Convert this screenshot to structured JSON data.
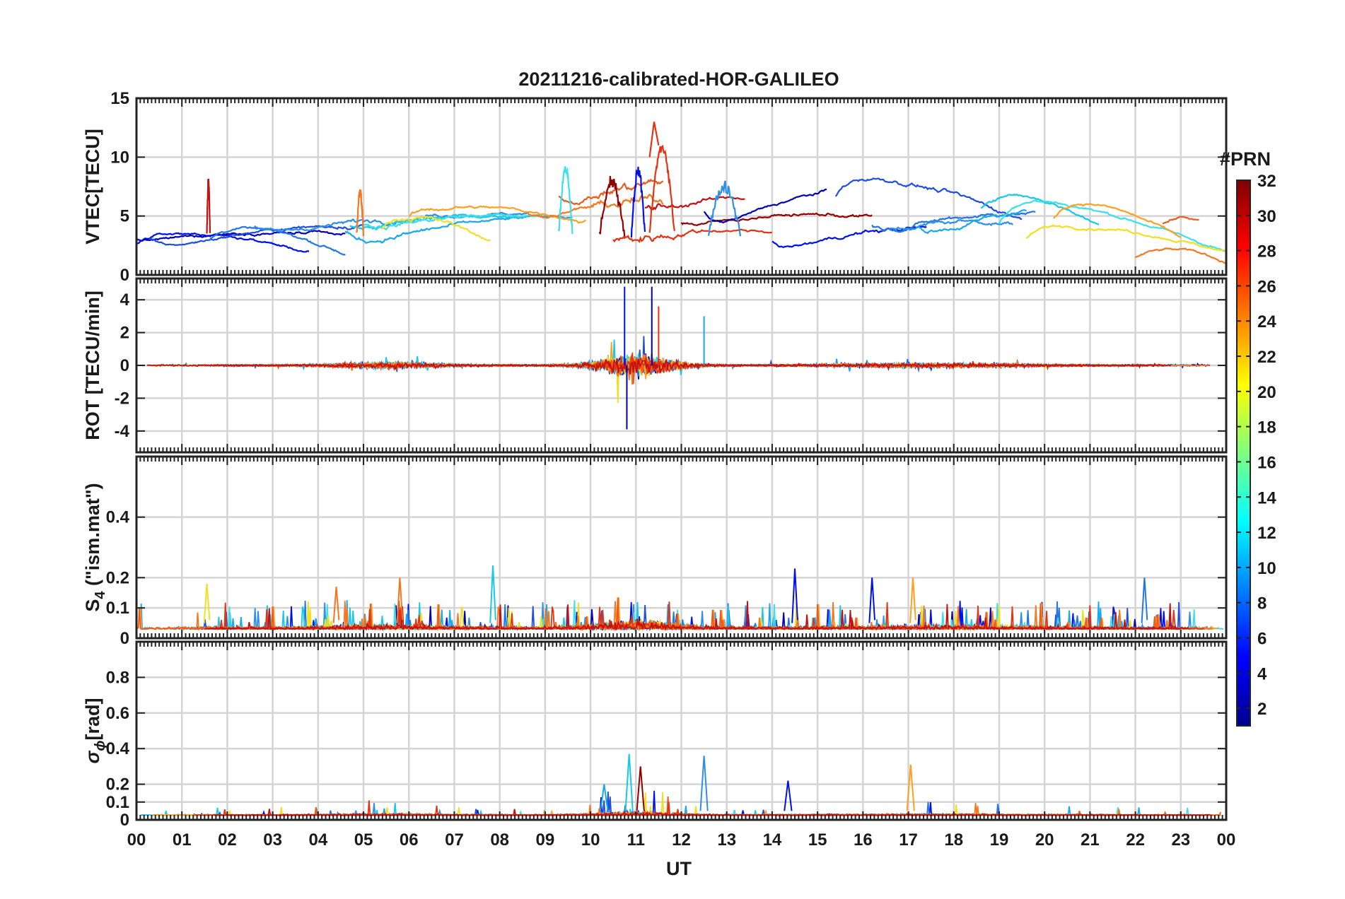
{
  "chart_data": {
    "type": "line",
    "title": "20211216-calibrated-HOR-GALILEO",
    "xlabel": "UT",
    "x_tick_labels": [
      "00",
      "01",
      "02",
      "03",
      "04",
      "05",
      "06",
      "07",
      "08",
      "09",
      "10",
      "11",
      "12",
      "13",
      "14",
      "15",
      "16",
      "17",
      "18",
      "19",
      "20",
      "21",
      "22",
      "23",
      "00"
    ],
    "xlim": [
      0,
      24
    ],
    "panels": [
      {
        "id": "vtec",
        "ylabel": "VTEC[TECU]",
        "ylim": [
          0,
          15
        ],
        "y_ticks": [
          0,
          5,
          10,
          15
        ],
        "y_tick_labels": [
          "0",
          "5",
          "10",
          "15"
        ],
        "grid": true,
        "approx_peak": {
          "x_hour": 11.4,
          "value": 13
        }
      },
      {
        "id": "rot",
        "ylabel": "ROT [TECU/min]",
        "ylim": [
          -5.3,
          5.3
        ],
        "y_ticks": [
          -4,
          -2,
          0,
          2,
          4
        ],
        "y_tick_labels": [
          "-4",
          "-2",
          "0",
          "2",
          "4"
        ],
        "grid": true,
        "approx_extremes": {
          "max": 4.8,
          "min": -3.9
        }
      },
      {
        "id": "s4",
        "ylabel_main": "S",
        "ylabel_sub": "4",
        "ylabel_rest": " (\"ism.mat\")",
        "ylim": [
          0,
          0.6
        ],
        "y_ticks": [
          0,
          0.1,
          0.2,
          0.4
        ],
        "y_tick_labels": [
          "0",
          "0.1",
          "0.2",
          "0.4"
        ],
        "grid": true,
        "approx_peak": {
          "x_hour": 7.85,
          "value": 0.24
        }
      },
      {
        "id": "sigma_phi",
        "ylabel_main": "σ",
        "ylabel_sub": "ϕ",
        "ylabel_rest": "[rad]",
        "ylim": [
          0,
          1.0
        ],
        "y_ticks": [
          0,
          0.1,
          0.2,
          0.4,
          0.6,
          0.8
        ],
        "y_tick_labels": [
          "0",
          "0.1",
          "0.2",
          "0.4",
          "0.6",
          "0.8"
        ],
        "grid": true,
        "approx_peak": {
          "x_hour": 10.85,
          "value": 0.37
        }
      }
    ],
    "colorbar": {
      "label": "#PRN",
      "range": [
        1,
        32
      ],
      "tick_values": [
        2,
        4,
        6,
        8,
        10,
        12,
        14,
        16,
        18,
        20,
        22,
        24,
        26,
        28,
        30,
        32
      ],
      "tick_labels": [
        "2",
        "4",
        "6",
        "8",
        "10",
        "12",
        "14",
        "16",
        "18",
        "20",
        "22",
        "24",
        "26",
        "28",
        "30",
        "32"
      ],
      "colormap": "jet"
    },
    "series": [
      {
        "prn": 2,
        "color": "#0000b4"
      },
      {
        "prn": 3,
        "color": "#0010e8"
      },
      {
        "prn": 5,
        "color": "#1f4fe0"
      },
      {
        "prn": 7,
        "color": "#2277e6"
      },
      {
        "prn": 9,
        "color": "#2d8fe8"
      },
      {
        "prn": 10,
        "color": "#18a8ee"
      },
      {
        "prn": 12,
        "color": "#18c8e8"
      },
      {
        "prn": 13,
        "color": "#3ce0e8"
      },
      {
        "prn": 20,
        "color": "#f0e020"
      },
      {
        "prn": 22,
        "color": "#ffa020"
      },
      {
        "prn": 24,
        "color": "#f57820"
      },
      {
        "prn": 25,
        "color": "#ee5a1c"
      },
      {
        "prn": 27,
        "color": "#e23414"
      },
      {
        "prn": 29,
        "color": "#c41010"
      },
      {
        "prn": 31,
        "color": "#940000"
      }
    ]
  }
}
